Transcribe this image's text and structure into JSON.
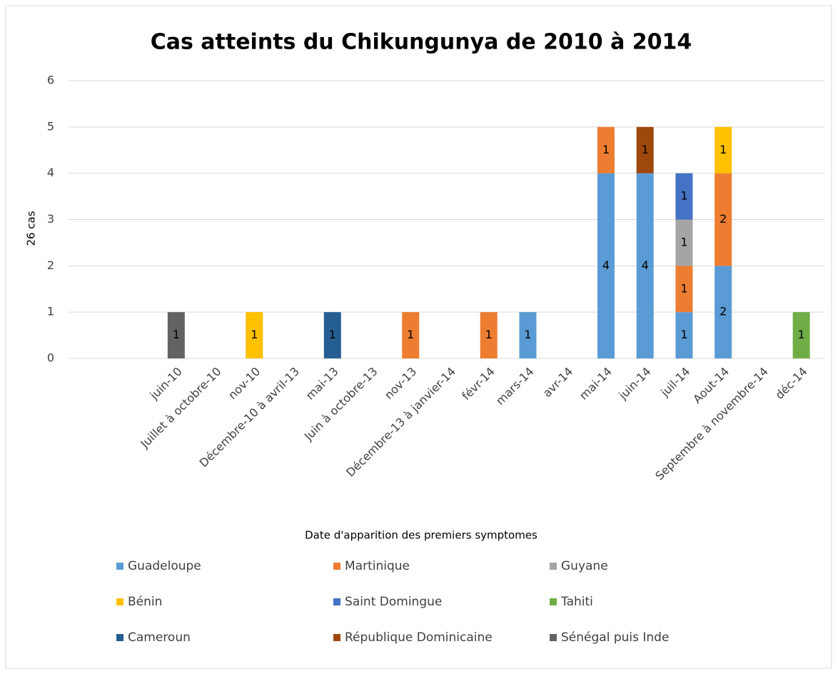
{
  "chart_data": {
    "type": "bar",
    "stacked": true,
    "title": "Cas atteints du Chikungunya de 2010 à 2014",
    "x_label": "Date d'apparition des premiers symptomes",
    "y_label": "26 cas",
    "categories": [
      null,
      null,
      "juin-10",
      "Juillet à octobre-10",
      "nov-10",
      "Décembre-10 à avril-13",
      "mai-13",
      "Juin à octobre-13",
      "nov-13",
      "Décembre-13  à janvier-14",
      "févr-14",
      "mars-14",
      "avr-14",
      "mai-14",
      "juin-14",
      "juil-14",
      "Aout-14",
      "Septembre à novembre-14",
      "déc-14"
    ],
    "series": [
      {
        "name": "Guadeloupe",
        "color": "#5b9bd5",
        "values": [
          null,
          null,
          null,
          null,
          null,
          null,
          null,
          null,
          null,
          null,
          null,
          1,
          null,
          4,
          4,
          1,
          2,
          null,
          null
        ]
      },
      {
        "name": "Martinique",
        "color": "#ed7d31",
        "values": [
          null,
          null,
          null,
          null,
          null,
          null,
          null,
          null,
          1,
          null,
          1,
          null,
          null,
          1,
          null,
          1,
          2,
          null,
          null
        ]
      },
      {
        "name": "Guyane",
        "color": "#a5a5a5",
        "values": [
          null,
          null,
          null,
          null,
          null,
          null,
          null,
          null,
          null,
          null,
          null,
          null,
          null,
          null,
          null,
          1,
          null,
          null,
          null
        ]
      },
      {
        "name": "Bénin",
        "color": "#ffc000",
        "values": [
          null,
          null,
          null,
          null,
          1,
          null,
          null,
          null,
          null,
          null,
          null,
          null,
          null,
          null,
          null,
          null,
          1,
          null,
          null
        ]
      },
      {
        "name": "Saint Domingue",
        "color": "#4472c4",
        "values": [
          null,
          null,
          null,
          null,
          null,
          null,
          null,
          null,
          null,
          null,
          null,
          null,
          null,
          null,
          null,
          1,
          null,
          null,
          null
        ]
      },
      {
        "name": "Tahiti",
        "color": "#70ad47",
        "values": [
          null,
          null,
          null,
          null,
          null,
          null,
          null,
          null,
          null,
          null,
          null,
          null,
          null,
          null,
          null,
          null,
          null,
          null,
          1
        ]
      },
      {
        "name": "Cameroun",
        "color": "#255e91",
        "values": [
          null,
          null,
          null,
          null,
          null,
          null,
          1,
          null,
          null,
          null,
          null,
          null,
          null,
          null,
          null,
          null,
          null,
          null,
          null
        ]
      },
      {
        "name": "République Dominicaine",
        "color": "#9e480e",
        "values": [
          null,
          null,
          null,
          null,
          null,
          null,
          null,
          null,
          null,
          null,
          null,
          null,
          null,
          null,
          1,
          null,
          null,
          null,
          null
        ]
      },
      {
        "name": "Sénégal puis Inde",
        "color": "#636363",
        "values": [
          null,
          null,
          1,
          null,
          null,
          null,
          null,
          null,
          null,
          null,
          null,
          null,
          null,
          null,
          null,
          null,
          null,
          null,
          null
        ]
      }
    ],
    "ylim": [
      0,
      6
    ],
    "yticks": [
      0,
      1,
      2,
      3,
      4,
      5,
      6
    ],
    "grid": true,
    "legend": "bottom"
  }
}
